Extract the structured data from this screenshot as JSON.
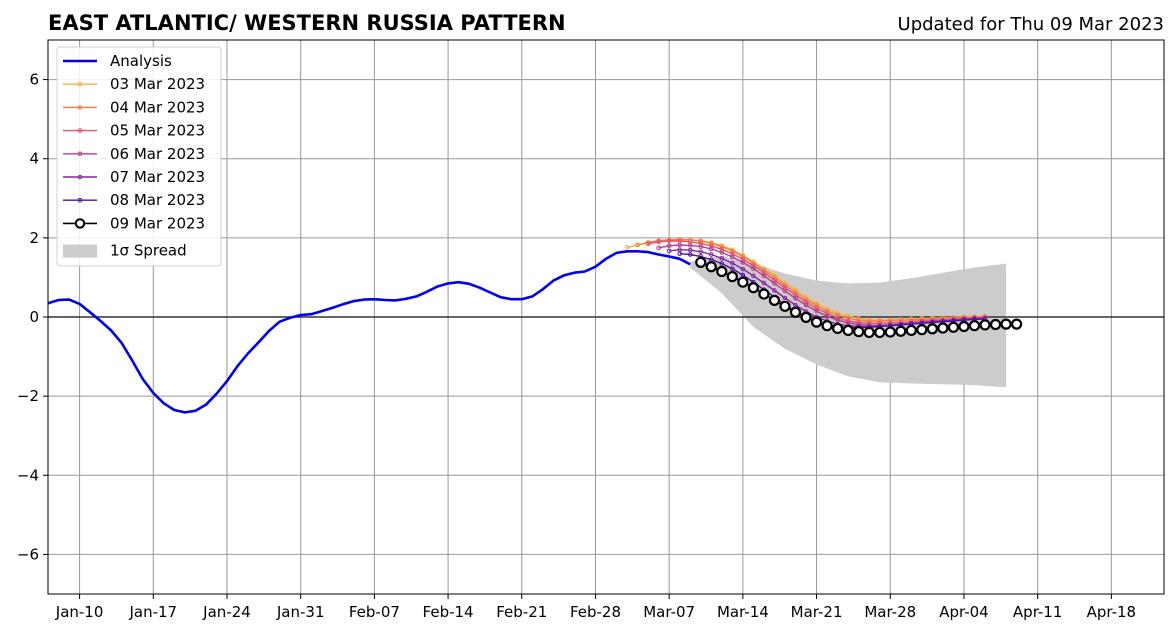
{
  "chart_data": {
    "type": "line",
    "title": "EAST ATLANTIC/ WESTERN RUSSIA PATTERN",
    "updated": "Updated for Thu 09 Mar 2023",
    "ylim": [
      -7,
      7
    ],
    "yticks": [
      -6,
      -4,
      -2,
      0,
      2,
      4,
      6
    ],
    "ytick_labels": [
      "−6",
      "−4",
      "−2",
      "0",
      "2",
      "4",
      "6"
    ],
    "xlim": [
      "2023-01-07",
      "2023-04-23"
    ],
    "xticks": [
      "2023-01-10",
      "2023-01-17",
      "2023-01-24",
      "2023-01-31",
      "2023-02-07",
      "2023-02-14",
      "2023-02-21",
      "2023-02-28",
      "2023-03-07",
      "2023-03-14",
      "2023-03-21",
      "2023-03-28",
      "2023-04-04",
      "2023-04-11",
      "2023-04-18"
    ],
    "xtick_labels": [
      "Jan-10",
      "Jan-17",
      "Jan-24",
      "Jan-31",
      "Feb-07",
      "Feb-14",
      "Feb-21",
      "Feb-28",
      "Mar-07",
      "Mar-14",
      "Mar-21",
      "Mar-28",
      "Apr-04",
      "Apr-11",
      "Apr-18"
    ],
    "grid": true,
    "legend_position": "top-left",
    "legend": [
      "Analysis",
      "03 Mar 2023",
      "04 Mar 2023",
      "05 Mar 2023",
      "06 Mar 2023",
      "07 Mar 2023",
      "08 Mar 2023",
      "09 Mar 2023",
      "1σ Spread"
    ],
    "colors": {
      "analysis": "#0000ee",
      "spread": "#cccccc",
      "zero_line": "#333333",
      "grid": "#999999",
      "forecast_09": "#000000"
    },
    "analysis": {
      "name": "Analysis",
      "x": [
        "2023-01-07",
        "2023-01-08",
        "2023-01-09",
        "2023-01-10",
        "2023-01-11",
        "2023-01-12",
        "2023-01-13",
        "2023-01-14",
        "2023-01-15",
        "2023-01-16",
        "2023-01-17",
        "2023-01-18",
        "2023-01-19",
        "2023-01-20",
        "2023-01-21",
        "2023-01-22",
        "2023-01-23",
        "2023-01-24",
        "2023-01-25",
        "2023-01-26",
        "2023-01-27",
        "2023-01-28",
        "2023-01-29",
        "2023-01-30",
        "2023-01-31",
        "2023-02-01",
        "2023-02-02",
        "2023-02-03",
        "2023-02-04",
        "2023-02-05",
        "2023-02-06",
        "2023-02-07",
        "2023-02-08",
        "2023-02-09",
        "2023-02-10",
        "2023-02-11",
        "2023-02-12",
        "2023-02-13",
        "2023-02-14",
        "2023-02-15",
        "2023-02-16",
        "2023-02-17",
        "2023-02-18",
        "2023-02-19",
        "2023-02-20",
        "2023-02-21",
        "2023-02-22",
        "2023-02-23",
        "2023-02-24",
        "2023-02-25",
        "2023-02-26",
        "2023-02-27",
        "2023-02-28",
        "2023-03-01",
        "2023-03-02",
        "2023-03-03",
        "2023-03-04",
        "2023-03-05",
        "2023-03-06",
        "2023-03-07",
        "2023-03-08",
        "2023-03-09"
      ],
      "y": [
        0.35,
        0.43,
        0.44,
        0.33,
        0.12,
        -0.1,
        -0.34,
        -0.66,
        -1.1,
        -1.57,
        -1.92,
        -2.18,
        -2.35,
        -2.41,
        -2.37,
        -2.22,
        -1.94,
        -1.62,
        -1.24,
        -0.92,
        -0.64,
        -0.35,
        -0.12,
        -0.02,
        0.05,
        0.07,
        0.15,
        0.23,
        0.32,
        0.4,
        0.44,
        0.45,
        0.43,
        0.42,
        0.46,
        0.52,
        0.64,
        0.77,
        0.85,
        0.88,
        0.84,
        0.74,
        0.62,
        0.5,
        0.45,
        0.45,
        0.52,
        0.7,
        0.92,
        1.05,
        1.12,
        1.15,
        1.27,
        1.47,
        1.62,
        1.66,
        1.66,
        1.64,
        1.58,
        1.53,
        1.47,
        1.33
      ]
    },
    "spread": {
      "name": "1σ Spread",
      "x": [
        "2023-03-09",
        "2023-03-12",
        "2023-03-15",
        "2023-03-18",
        "2023-03-21",
        "2023-03-24",
        "2023-03-27",
        "2023-03-30",
        "2023-04-02",
        "2023-04-05",
        "2023-04-08"
      ],
      "upper": [
        1.4,
        1.55,
        1.35,
        1.1,
        0.92,
        0.85,
        0.87,
        0.98,
        1.12,
        1.25,
        1.35
      ],
      "lower": [
        1.25,
        0.6,
        -0.25,
        -0.8,
        -1.2,
        -1.5,
        -1.65,
        -1.68,
        -1.7,
        -1.72,
        -1.78
      ]
    },
    "forecasts": [
      {
        "name": "03 Mar 2023",
        "color": "#f9b037",
        "start": "2023-03-03",
        "y": [
          1.76,
          1.82,
          1.88,
          1.92,
          1.94,
          1.95,
          1.95,
          1.93,
          1.88,
          1.8,
          1.7,
          1.56,
          1.4,
          1.22,
          1.05,
          0.86,
          0.68,
          0.5,
          0.35,
          0.21,
          0.1,
          0.02,
          -0.04,
          -0.07,
          -0.08,
          -0.07,
          -0.06,
          -0.05,
          -0.04,
          -0.03,
          -0.02,
          -0.01,
          0.0,
          0.01,
          0.02
        ]
      },
      {
        "name": "04 Mar 2023",
        "color": "#f37d4a",
        "start": "2023-03-04",
        "y": [
          1.82,
          1.88,
          1.93,
          1.95,
          1.96,
          1.95,
          1.92,
          1.86,
          1.78,
          1.67,
          1.53,
          1.36,
          1.18,
          1.0,
          0.8,
          0.62,
          0.44,
          0.29,
          0.15,
          0.05,
          -0.03,
          -0.08,
          -0.1,
          -0.1,
          -0.09,
          -0.08,
          -0.07,
          -0.06,
          -0.05,
          -0.03,
          -0.02,
          -0.01,
          0.0,
          0.01
        ]
      },
      {
        "name": "05 Mar 2023",
        "color": "#e0536a",
        "start": "2023-03-05",
        "y": [
          1.85,
          1.9,
          1.92,
          1.92,
          1.9,
          1.86,
          1.8,
          1.71,
          1.6,
          1.46,
          1.3,
          1.12,
          0.93,
          0.74,
          0.55,
          0.38,
          0.22,
          0.09,
          -0.02,
          -0.1,
          -0.14,
          -0.16,
          -0.16,
          -0.15,
          -0.14,
          -0.12,
          -0.1,
          -0.08,
          -0.07,
          -0.05,
          -0.03,
          -0.02,
          -0.01
        ]
      },
      {
        "name": "06 Mar 2023",
        "color": "#b83c8a",
        "start": "2023-03-06",
        "y": [
          1.75,
          1.8,
          1.82,
          1.81,
          1.78,
          1.72,
          1.63,
          1.52,
          1.38,
          1.22,
          1.04,
          0.85,
          0.66,
          0.47,
          0.3,
          0.15,
          0.02,
          -0.08,
          -0.15,
          -0.19,
          -0.21,
          -0.21,
          -0.2,
          -0.18,
          -0.16,
          -0.14,
          -0.12,
          -0.1,
          -0.08,
          -0.06,
          -0.04,
          -0.03
        ]
      },
      {
        "name": "07 Mar 2023",
        "color": "#8a24a6",
        "start": "2023-03-07",
        "y": [
          1.67,
          1.7,
          1.69,
          1.65,
          1.58,
          1.48,
          1.36,
          1.21,
          1.04,
          0.86,
          0.67,
          0.48,
          0.3,
          0.14,
          0.0,
          -0.1,
          -0.18,
          -0.22,
          -0.24,
          -0.24,
          -0.23,
          -0.21,
          -0.19,
          -0.17,
          -0.15,
          -0.12,
          -0.1,
          -0.08,
          -0.06,
          -0.04,
          -0.03
        ]
      },
      {
        "name": "08 Mar 2023",
        "color": "#4d12a3",
        "start": "2023-03-08",
        "y": [
          1.6,
          1.58,
          1.53,
          1.45,
          1.35,
          1.22,
          1.06,
          0.88,
          0.69,
          0.5,
          0.31,
          0.14,
          0.0,
          -0.12,
          -0.2,
          -0.25,
          -0.27,
          -0.27,
          -0.26,
          -0.24,
          -0.22,
          -0.2,
          -0.18,
          -0.16,
          -0.14,
          -0.12,
          -0.1,
          -0.08,
          -0.06,
          -0.05
        ]
      },
      {
        "name": "09 Mar 2023",
        "color": "#000000",
        "start": "2023-03-10",
        "y": [
          1.38,
          1.27,
          1.15,
          1.02,
          0.88,
          0.74,
          0.58,
          0.42,
          0.27,
          0.12,
          -0.01,
          -0.13,
          -0.22,
          -0.29,
          -0.34,
          -0.37,
          -0.39,
          -0.39,
          -0.38,
          -0.36,
          -0.34,
          -0.32,
          -0.3,
          -0.28,
          -0.26,
          -0.24,
          -0.22,
          -0.2,
          -0.19,
          -0.18,
          -0.18
        ]
      }
    ]
  }
}
